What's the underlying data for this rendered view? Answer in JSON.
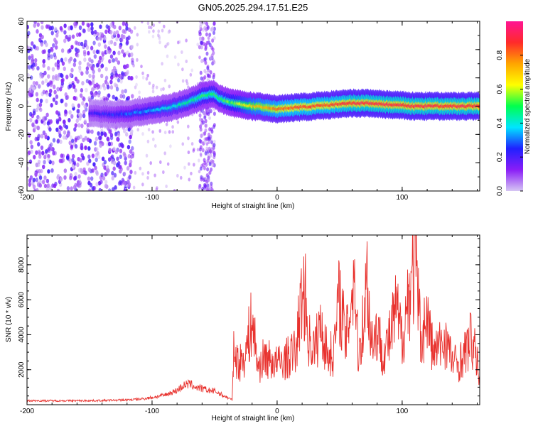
{
  "title": "GN05.2025.294.17.51.E25",
  "colors": {
    "snr_line": "#e8322e",
    "axis": "#000000",
    "colorbar_stops": [
      "#d6c6f3",
      "#8a1ef7",
      "#2020ff",
      "#00e5ff",
      "#00ff4e",
      "#ffff00",
      "#ffa500",
      "#ff2a2a",
      "#ff1493"
    ]
  },
  "chart_data": [
    {
      "type": "heatmap",
      "title": "GN05.2025.294.17.51.E25",
      "xlabel": "Height of straight line (km)",
      "ylabel": "Frequency (Hz)",
      "xlim": [
        -200,
        162
      ],
      "ylim": [
        -60,
        60
      ],
      "x_ticks": [
        "-200",
        "-100",
        "0",
        "100"
      ],
      "x_tick_values": [
        -200,
        -100,
        0,
        100
      ],
      "y_ticks": [
        "-60",
        "-40",
        "-20",
        "0",
        "20",
        "40",
        "60"
      ],
      "y_tick_values": [
        -60,
        -40,
        -20,
        0,
        20,
        40,
        60
      ],
      "colorbar": {
        "label": "Normalized spectral amplitude",
        "range": [
          0,
          1
        ],
        "ticks": [
          "0.0",
          "0.2",
          "0.4",
          "0.6",
          "0.8"
        ],
        "tick_values": [
          0,
          0.2,
          0.4,
          0.6,
          0.8
        ]
      },
      "ridge": {
        "x": [
          -150,
          -130,
          -115,
          -100,
          -85,
          -70,
          -60,
          -52,
          -45,
          -35,
          -20,
          -10,
          0,
          15,
          30,
          45,
          60,
          75,
          90,
          110,
          130,
          150,
          162
        ],
        "frequency": [
          -5,
          -6,
          -5,
          -3,
          -1,
          3,
          7,
          9,
          5,
          2,
          0,
          -1,
          -2,
          -1,
          0,
          1,
          2,
          2,
          1,
          0,
          0,
          0,
          0
        ],
        "amplitude": [
          0.2,
          0.25,
          0.3,
          0.35,
          0.4,
          0.45,
          0.5,
          0.5,
          0.5,
          0.55,
          0.7,
          0.75,
          0.8,
          0.85,
          0.85,
          0.85,
          0.9,
          0.9,
          0.9,
          0.9,
          0.9,
          0.9,
          0.9
        ]
      },
      "noise_region_x": [
        -200,
        -115
      ],
      "noise_band_x": [
        -62,
        -50
      ]
    },
    {
      "type": "line",
      "xlabel": "Height of straight line (km)",
      "ylabel": "SNR (10 * v/v)",
      "xlim": [
        -200,
        162
      ],
      "ylim": [
        0,
        9700
      ],
      "x_ticks": [
        "-200",
        "-100",
        "0",
        "100"
      ],
      "x_tick_values": [
        -200,
        -100,
        0,
        100
      ],
      "y_ticks": [
        "2000",
        "4000",
        "6000",
        "8000"
      ],
      "y_tick_values": [
        2000,
        4000,
        6000,
        8000
      ],
      "series": [
        {
          "x": [
            -200,
            -180,
            -160,
            -140,
            -120,
            -110,
            -100,
            -90,
            -80,
            -75,
            -70,
            -65,
            -60,
            -55,
            -50,
            -36,
            -35,
            -30,
            -25,
            -20,
            -15,
            -10,
            -5,
            0,
            5,
            10,
            15,
            20,
            22,
            25,
            30,
            35,
            40,
            45,
            50,
            55,
            60,
            62,
            65,
            70,
            72,
            75,
            80,
            85,
            90,
            95,
            100,
            105,
            110,
            112,
            115,
            120,
            125,
            130,
            135,
            140,
            145,
            150,
            155,
            160,
            162
          ],
          "y": [
            250,
            250,
            250,
            260,
            300,
            350,
            450,
            600,
            900,
            1200,
            1300,
            1100,
            1000,
            900,
            850,
            300,
            3500,
            2800,
            3600,
            5800,
            2500,
            3300,
            3000,
            2800,
            3000,
            3300,
            3700,
            7500,
            7900,
            4500,
            3800,
            5500,
            3500,
            3500,
            7500,
            4200,
            8000,
            9000,
            3200,
            6500,
            8900,
            4500,
            5000,
            3500,
            4500,
            6500,
            4500,
            7500,
            9700,
            8000,
            4500,
            6000,
            3500,
            4000,
            4500,
            3000,
            2800,
            3500,
            4500,
            3000,
            1500
          ]
        }
      ]
    }
  ]
}
